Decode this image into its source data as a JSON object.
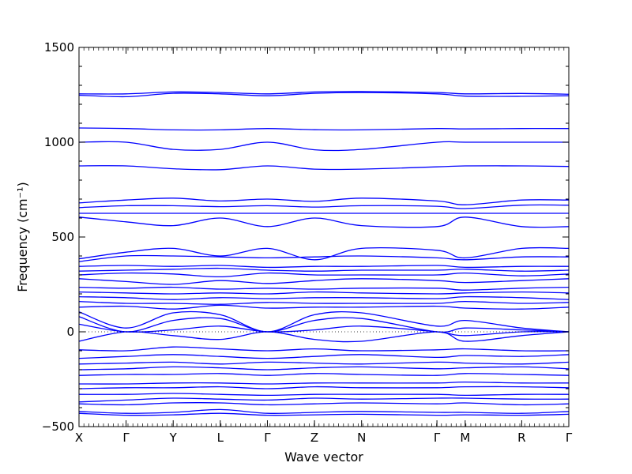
{
  "chart_data": {
    "type": "line",
    "title": "",
    "xlabel": "Wave vector",
    "ylabel": "Frequency (cm⁻¹)",
    "ylim": [
      -500,
      1500
    ],
    "yticks": [
      -500,
      0,
      500,
      1000,
      1500
    ],
    "x_points": [
      {
        "label": "X",
        "x": 0
      },
      {
        "label": "Γ",
        "x": 1
      },
      {
        "label": "Y",
        "x": 2
      },
      {
        "label": "L",
        "x": 3
      },
      {
        "label": "Γ",
        "x": 4
      },
      {
        "label": "Z",
        "x": 5
      },
      {
        "label": "N",
        "x": 6
      },
      {
        "label": "Γ",
        "x": 7.6
      },
      {
        "label": "M",
        "x": 8.2
      },
      {
        "label": "R",
        "x": 9.4
      },
      {
        "label": "Γ",
        "x": 10.4
      }
    ],
    "xlim": [
      0,
      10.4
    ],
    "grid": false,
    "zero_line": true,
    "color": "#0000ff",
    "series": [
      {
        "values": [
          1255,
          1255,
          1265,
          1262,
          1255,
          1265,
          1267,
          1262,
          1255,
          1257,
          1253
        ]
      },
      {
        "values": [
          1248,
          1240,
          1258,
          1255,
          1245,
          1258,
          1262,
          1255,
          1243,
          1242,
          1245
        ]
      },
      {
        "values": [
          1075,
          1072,
          1065,
          1065,
          1072,
          1066,
          1065,
          1072,
          1070,
          1072,
          1072
        ]
      },
      {
        "values": [
          1000,
          1000,
          962,
          962,
          1000,
          960,
          962,
          1000,
          1000,
          1000,
          1000
        ]
      },
      {
        "values": [
          875,
          875,
          860,
          855,
          875,
          858,
          858,
          870,
          875,
          875,
          872
        ]
      },
      {
        "values": [
          680,
          695,
          705,
          690,
          700,
          688,
          705,
          690,
          670,
          695,
          695
        ]
      },
      {
        "values": [
          655,
          665,
          665,
          660,
          665,
          658,
          665,
          662,
          650,
          668,
          668
        ]
      },
      {
        "values": [
          625,
          625,
          625,
          625,
          625,
          625,
          625,
          625,
          625,
          625,
          625
        ]
      },
      {
        "values": [
          605,
          580,
          560,
          600,
          555,
          600,
          560,
          555,
          605,
          555,
          555
        ]
      },
      {
        "values": [
          385,
          420,
          440,
          400,
          440,
          380,
          440,
          430,
          390,
          440,
          440
        ]
      },
      {
        "values": [
          370,
          400,
          400,
          395,
          390,
          395,
          400,
          390,
          380,
          395,
          395
        ]
      },
      {
        "values": [
          345,
          350,
          345,
          350,
          340,
          345,
          345,
          350,
          340,
          345,
          345
        ]
      },
      {
        "values": [
          320,
          325,
          330,
          335,
          325,
          320,
          325,
          325,
          330,
          320,
          325
        ]
      },
      {
        "values": [
          300,
          310,
          305,
          290,
          310,
          300,
          300,
          300,
          310,
          295,
          305
        ]
      },
      {
        "values": [
          280,
          265,
          250,
          270,
          255,
          270,
          280,
          270,
          260,
          270,
          280
        ]
      },
      {
        "values": [
          235,
          230,
          235,
          225,
          230,
          225,
          230,
          230,
          220,
          230,
          235
        ]
      },
      {
        "values": [
          210,
          205,
          200,
          205,
          200,
          210,
          205,
          200,
          205,
          210,
          205
        ]
      },
      {
        "values": [
          185,
          180,
          170,
          180,
          175,
          180,
          180,
          175,
          185,
          180,
          170
        ]
      },
      {
        "values": [
          160,
          150,
          150,
          145,
          155,
          150,
          150,
          150,
          160,
          150,
          155
        ]
      },
      {
        "values": [
          130,
          135,
          120,
          140,
          125,
          130,
          130,
          135,
          125,
          120,
          130
        ]
      },
      {
        "values": [
          105,
          20,
          100,
          90,
          0,
          90,
          100,
          30,
          60,
          20,
          0
        ]
      },
      {
        "values": [
          80,
          0,
          60,
          70,
          0,
          60,
          70,
          0,
          20,
          10,
          0
        ]
      },
      {
        "values": [
          40,
          0,
          10,
          30,
          0,
          10,
          30,
          0,
          -20,
          0,
          0
        ]
      },
      {
        "values": [
          -50,
          0,
          -20,
          -40,
          0,
          -40,
          -50,
          0,
          -50,
          -20,
          0
        ]
      },
      {
        "values": [
          -95,
          -100,
          -80,
          -90,
          -100,
          -90,
          -100,
          -95,
          -90,
          -100,
          -100
        ]
      },
      {
        "values": [
          -140,
          -130,
          -120,
          -130,
          -140,
          -130,
          -120,
          -135,
          -125,
          -130,
          -120
        ]
      },
      {
        "values": [
          -170,
          -165,
          -160,
          -170,
          -160,
          -165,
          -170,
          -160,
          -165,
          -170,
          -160
        ]
      },
      {
        "values": [
          -200,
          -195,
          -185,
          -190,
          -200,
          -190,
          -185,
          -195,
          -190,
          -185,
          -195
        ]
      },
      {
        "values": [
          -230,
          -225,
          -225,
          -220,
          -230,
          -220,
          -225,
          -230,
          -220,
          -225,
          -230
        ]
      },
      {
        "values": [
          -275,
          -275,
          -270,
          -270,
          -275,
          -270,
          -270,
          -270,
          -265,
          -270,
          -270
        ]
      },
      {
        "values": [
          -300,
          -295,
          -295,
          -290,
          -300,
          -290,
          -295,
          -295,
          -290,
          -290,
          -295
        ]
      },
      {
        "values": [
          -330,
          -330,
          -325,
          -330,
          -335,
          -330,
          -330,
          -330,
          -335,
          -330,
          -330
        ]
      },
      {
        "values": [
          -370,
          -360,
          -350,
          -355,
          -360,
          -350,
          -355,
          -350,
          -350,
          -355,
          -355
        ]
      },
      {
        "values": [
          -380,
          -385,
          -375,
          -375,
          -385,
          -380,
          -375,
          -380,
          -375,
          -385,
          -380
        ]
      },
      {
        "values": [
          -420,
          -430,
          -425,
          -410,
          -430,
          -425,
          -420,
          -425,
          -425,
          -430,
          -420
        ]
      },
      {
        "values": [
          -430,
          -440,
          -438,
          -430,
          -440,
          -438,
          -435,
          -440,
          -438,
          -440,
          -435
        ]
      }
    ]
  }
}
